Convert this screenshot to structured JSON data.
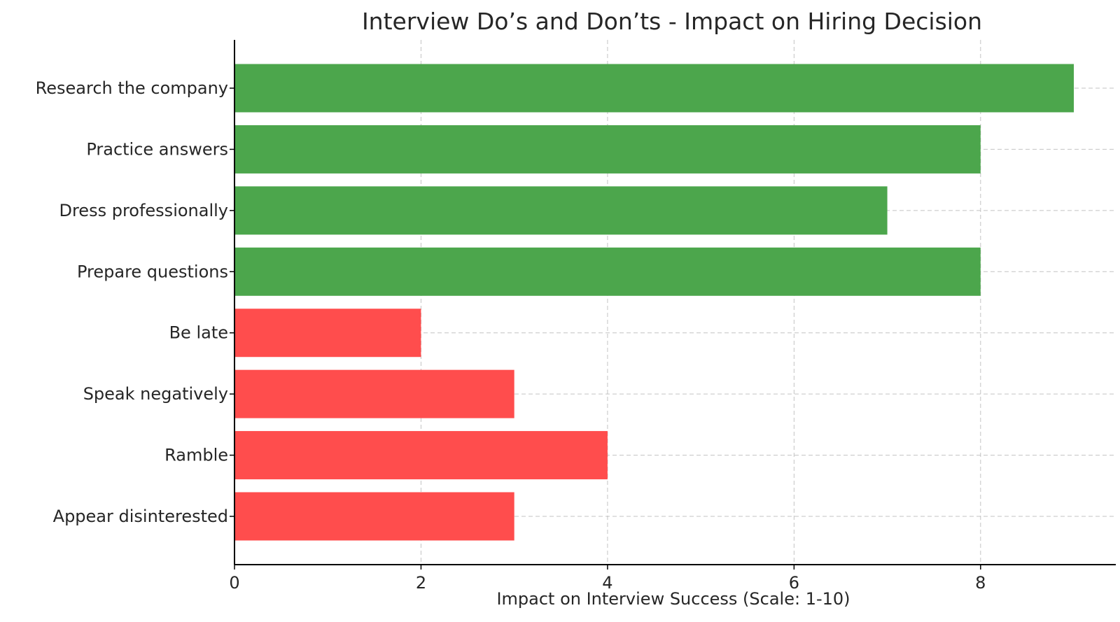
{
  "chart_data": {
    "type": "bar",
    "orientation": "horizontal",
    "title": "Interview Do’s and Don’ts - Impact on Hiring Decision",
    "xlabel": "Impact on Interview Success (Scale: 1-10)",
    "ylabel": "",
    "categories": [
      "Research the company",
      "Practice answers",
      "Dress professionally",
      "Prepare questions",
      "Be late",
      "Speak negatively",
      "Ramble",
      "Appear disinterested"
    ],
    "values": [
      9,
      8,
      7,
      8,
      2,
      3,
      4,
      3
    ],
    "bar_colors": [
      "#4ca64c",
      "#4ca64c",
      "#4ca64c",
      "#4ca64c",
      "#ff4d4d",
      "#ff4d4d",
      "#ff4d4d",
      "#ff4d4d"
    ],
    "xlim": [
      0,
      9.45
    ],
    "xticks": [
      0,
      2,
      4,
      6,
      8
    ],
    "grid": true,
    "legend": "none"
  }
}
